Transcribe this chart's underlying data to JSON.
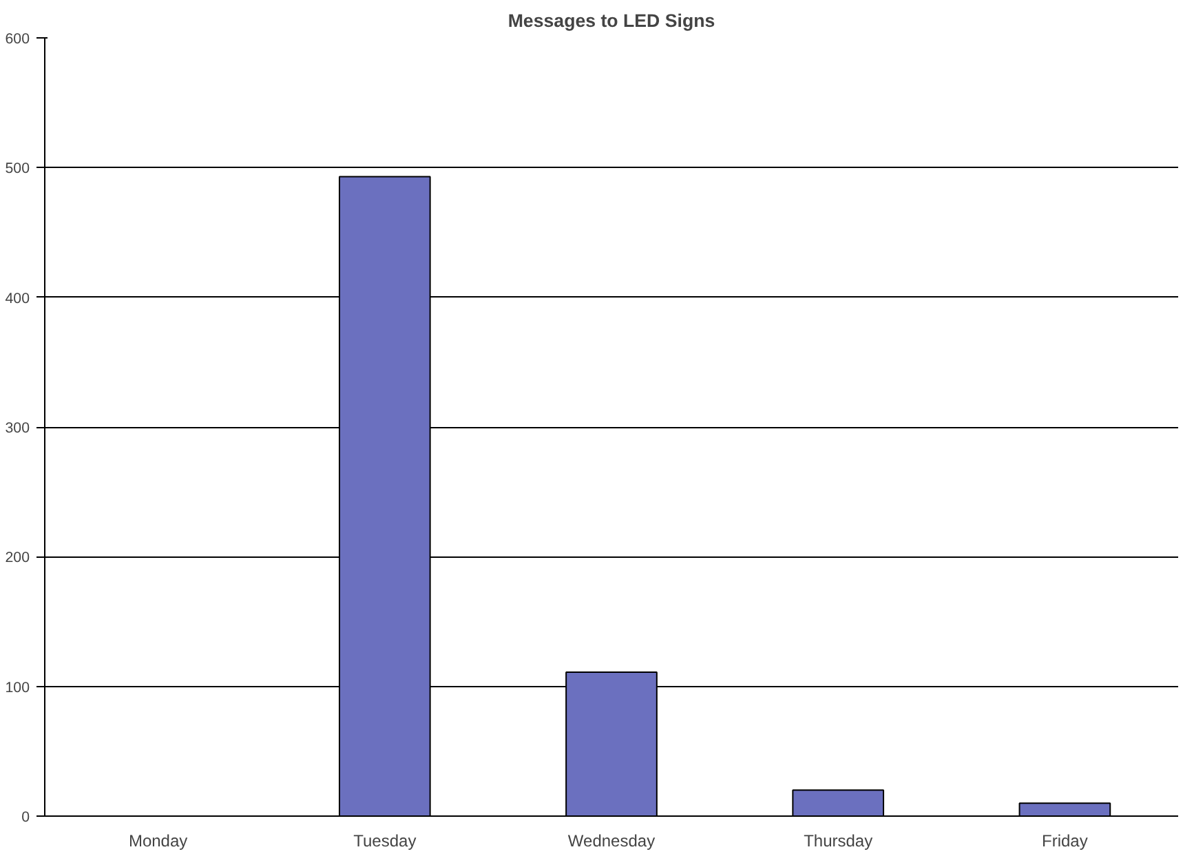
{
  "chart_data": {
    "type": "bar",
    "title": "Messages to LED Signs",
    "categories": [
      "Monday",
      "Tuesday",
      "Wednesday",
      "Thursday",
      "Friday"
    ],
    "values": [
      null,
      493,
      111,
      20,
      10
    ],
    "color": "#6b70bf",
    "ylim": [
      0,
      600
    ],
    "yticks": [
      0,
      100,
      200,
      300,
      400,
      500,
      600
    ],
    "grid": "y"
  }
}
